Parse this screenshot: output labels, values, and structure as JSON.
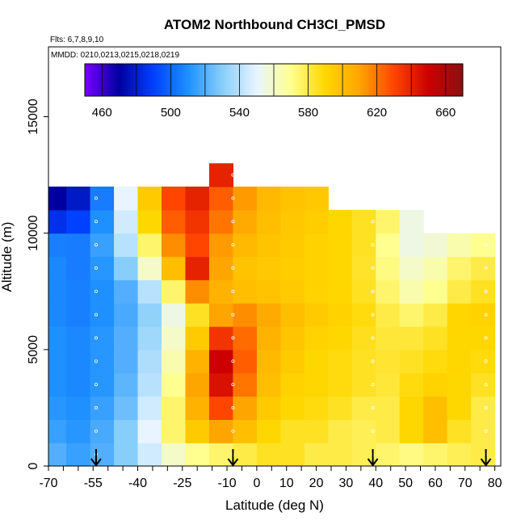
{
  "chart_data": {
    "type": "heatmap",
    "title": "ATOM2 Northbound CH3Cl_PMSD",
    "subtitle_flights": "Flts: 6,7,8,9,10",
    "subtitle_dates": "MMDD: 0210,0213,0215,0218,0219",
    "xlabel": "Latitude (deg N)",
    "ylabel": "Altitude (m)",
    "xlim": [
      -70,
      82
    ],
    "ylim": [
      0,
      18000
    ],
    "x_ticks_labeled": [
      -70,
      -55,
      -40,
      -25,
      -10,
      0,
      10,
      20,
      30,
      40,
      50,
      60,
      70,
      80
    ],
    "x_ticks_minor_all": [
      -70,
      -65,
      -60,
      -55,
      -50,
      -45,
      -40,
      -35,
      -30,
      -25,
      -20,
      -15,
      -10,
      -5,
      0,
      5,
      10,
      15,
      20,
      25,
      30,
      35,
      40,
      45,
      50,
      55,
      60,
      65,
      70,
      75,
      80
    ],
    "y_ticks": [
      0,
      5000,
      10000,
      15000
    ],
    "colorbar": {
      "min": 450,
      "max": 670,
      "tick_labels": [
        460,
        500,
        540,
        580,
        620,
        660
      ],
      "divisions": [
        450,
        460,
        480,
        500,
        520,
        540,
        560,
        580,
        600,
        620,
        640,
        660,
        670
      ],
      "colors": [
        "#7a00ff",
        "#0000a0",
        "#0040ff",
        "#1e90ff",
        "#87cefa",
        "#e8f4ff",
        "#ffff90",
        "#ffd700",
        "#ffa500",
        "#ff4500",
        "#cc0000",
        "#8b1010"
      ]
    },
    "flight_arrow_latitudes": [
      -54,
      -8,
      39,
      77
    ],
    "altitude_levels": [
      500,
      1500,
      2500,
      3500,
      4500,
      5500,
      6500,
      7500,
      8500,
      9500,
      10500,
      11500,
      12500
    ],
    "latitude_columns": [
      -68,
      -60,
      -52,
      -44,
      -36,
      -28,
      -20,
      -12,
      -4,
      4,
      12,
      20,
      28,
      36,
      44,
      52,
      60,
      68,
      76
    ],
    "field_values_ppt": [
      [
        520,
        515,
        520,
        530,
        545,
        560,
        570,
        575,
        580,
        585,
        585,
        580,
        580,
        578,
        575,
        572,
        575,
        578,
        580
      ],
      [
        515,
        512,
        518,
        530,
        550,
        575,
        595,
        610,
        600,
        590,
        585,
        585,
        580,
        578,
        580,
        590,
        600,
        585,
        580
      ],
      [
        512,
        510,
        515,
        525,
        545,
        575,
        605,
        630,
        610,
        595,
        590,
        588,
        585,
        580,
        580,
        590,
        600,
        590,
        580
      ],
      [
        510,
        508,
        512,
        522,
        540,
        570,
        610,
        645,
        620,
        600,
        592,
        590,
        588,
        585,
        582,
        588,
        592,
        590,
        585
      ],
      [
        510,
        508,
        512,
        520,
        538,
        565,
        605,
        650,
        625,
        602,
        595,
        590,
        588,
        585,
        583,
        585,
        588,
        590,
        588
      ],
      [
        510,
        508,
        512,
        520,
        535,
        560,
        595,
        635,
        622,
        605,
        597,
        592,
        590,
        586,
        582,
        582,
        585,
        590,
        590
      ],
      [
        508,
        506,
        510,
        518,
        532,
        555,
        585,
        610,
        615,
        608,
        600,
        595,
        592,
        588,
        580,
        575,
        580,
        590,
        592
      ],
      [
        508,
        506,
        510,
        520,
        540,
        575,
        615,
        605,
        600,
        598,
        595,
        592,
        590,
        585,
        575,
        565,
        570,
        580,
        585
      ],
      [
        508,
        505,
        512,
        530,
        560,
        600,
        640,
        610,
        598,
        596,
        594,
        592,
        590,
        584,
        572,
        560,
        565,
        575,
        580
      ],
      [
        506,
        505,
        515,
        540,
        575,
        615,
        630,
        612,
        602,
        598,
        595,
        592,
        590,
        585,
        570,
        555,
        558,
        565,
        570
      ],
      [
        485,
        490,
        510,
        545,
        590,
        625,
        635,
        620,
        608,
        600,
        596,
        594,
        590,
        585,
        575,
        555,
        null,
        null,
        null
      ],
      [
        470,
        478,
        505,
        550,
        595,
        630,
        640,
        625,
        612,
        602,
        598,
        596,
        null,
        null,
        null,
        null,
        null,
        null,
        null
      ],
      [
        null,
        null,
        null,
        null,
        null,
        null,
        null,
        640,
        null,
        null,
        null,
        null,
        null,
        null,
        null,
        null,
        null,
        null,
        null
      ]
    ]
  }
}
